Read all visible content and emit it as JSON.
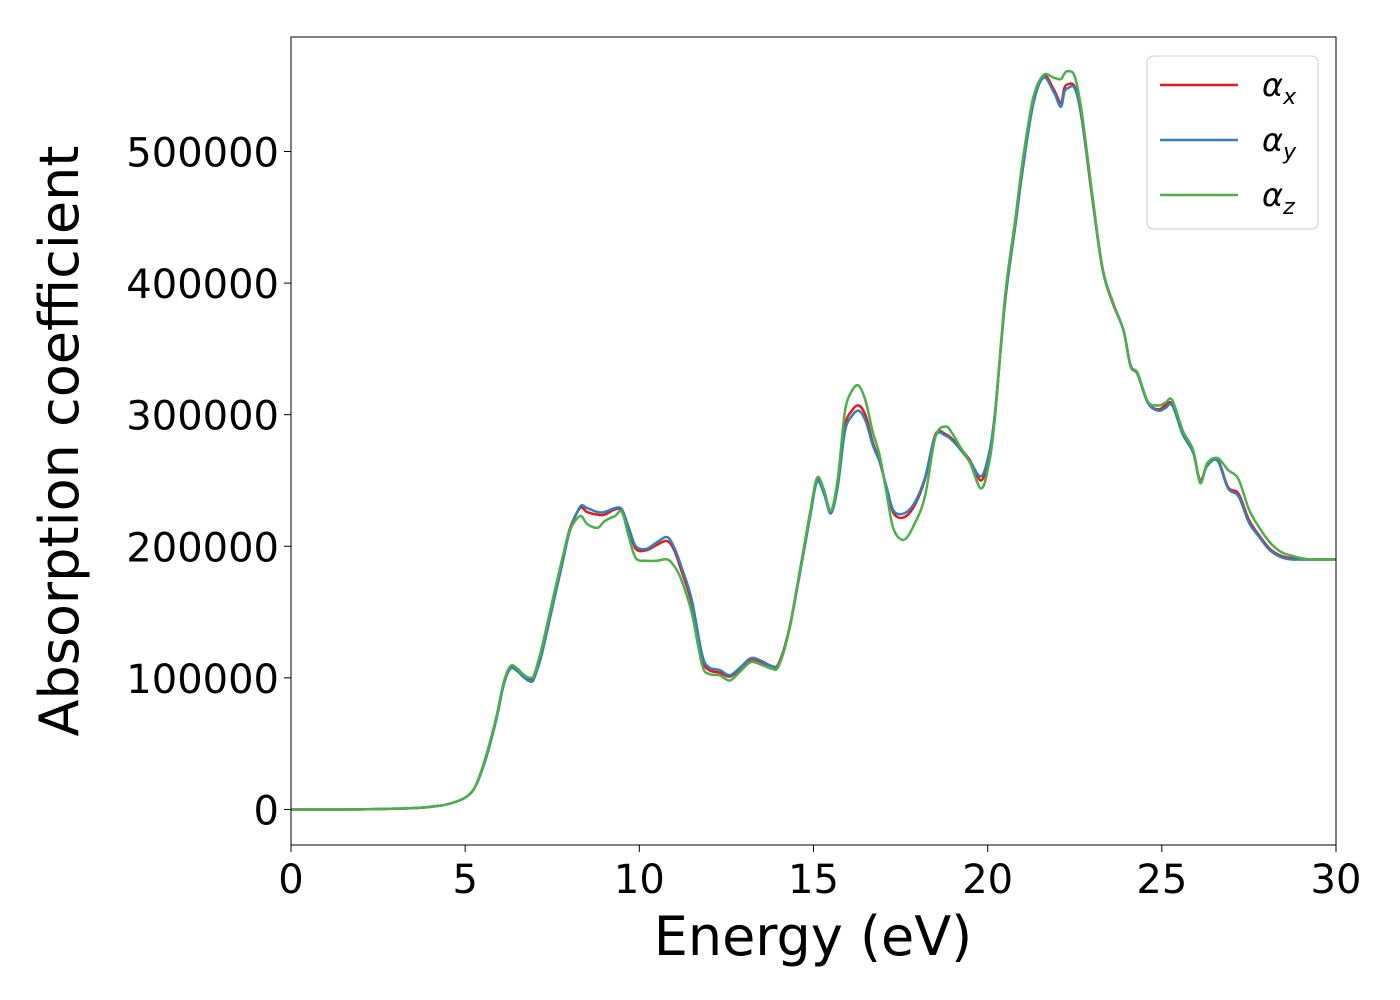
{
  "chart_data": {
    "type": "line",
    "title": "",
    "xlabel": "Energy (eV)",
    "ylabel": "Absorption coefficient",
    "xlim": [
      0,
      30
    ],
    "ylim": [
      -27000,
      587000
    ],
    "xticks": [
      0,
      5,
      10,
      15,
      20,
      25,
      30
    ],
    "yticks": [
      0,
      100000,
      200000,
      300000,
      400000,
      500000
    ],
    "grid": false,
    "legend_position": "top-right",
    "series": [
      {
        "name": "αx",
        "label_base": "α",
        "label_sub": "x",
        "color": "#e41a1c",
        "x": [
          0,
          1,
          2,
          3,
          3.5,
          4,
          4.5,
          5,
          5.3,
          5.6,
          5.9,
          6.1,
          6.3,
          6.5,
          6.7,
          6.9,
          7.0,
          7.2,
          7.5,
          7.8,
          8.0,
          8.3,
          8.5,
          8.8,
          9.0,
          9.3,
          9.5,
          9.7,
          9.9,
          10.2,
          10.5,
          10.8,
          11.0,
          11.2,
          11.5,
          11.8,
          12.0,
          12.3,
          12.6,
          12.9,
          13.2,
          13.5,
          13.8,
          14.0,
          14.3,
          14.6,
          14.9,
          15.1,
          15.3,
          15.5,
          15.7,
          15.9,
          16.1,
          16.3,
          16.5,
          16.7,
          16.9,
          17.1,
          17.3,
          17.6,
          17.9,
          18.2,
          18.5,
          18.8,
          19.0,
          19.2,
          19.5,
          19.8,
          20.0,
          20.2,
          20.5,
          20.8,
          21.0,
          21.3,
          21.6,
          21.9,
          22.1,
          22.2,
          22.3,
          22.5,
          22.7,
          23.0,
          23.3,
          23.6,
          23.9,
          24.1,
          24.3,
          24.6,
          24.9,
          25.1,
          25.3,
          25.6,
          25.9,
          26.1,
          26.3,
          26.6,
          26.9,
          27.2,
          27.5,
          27.8,
          28.1,
          28.4,
          28.7,
          29.0,
          29.3,
          29.6,
          29.9,
          30
        ],
        "y": [
          0,
          0,
          100,
          600,
          1000,
          2000,
          4000,
          9000,
          18000,
          40000,
          70000,
          95000,
          108000,
          106000,
          101000,
          99000,
          102000,
          120000,
          155000,
          190000,
          213000,
          229000,
          226000,
          224000,
          224000,
          228000,
          227000,
          213000,
          198000,
          197000,
          201000,
          204000,
          197000,
          182000,
          157000,
          115000,
          106000,
          104000,
          101000,
          107000,
          114000,
          112000,
          109000,
          111000,
          137000,
          180000,
          225000,
          250000,
          241000,
          226000,
          248000,
          291000,
          303000,
          307000,
          299000,
          279000,
          265000,
          243000,
          225000,
          222000,
          231000,
          251000,
          285000,
          285000,
          281000,
          275000,
          265000,
          250000,
          264000,
          298000,
          386000,
          445000,
          486000,
          536000,
          558000,
          547000,
          537000,
          548000,
          551000,
          549000,
          525000,
          465000,
          410000,
          384000,
          364000,
          337000,
          331000,
          309000,
          304000,
          307000,
          308000,
          286000,
          272000,
          250000,
          262000,
          266000,
          245000,
          240000,
          220000,
          208000,
          198000,
          193000,
          191000,
          190000,
          190000,
          190000,
          190000,
          190000
        ],
        "y_note": "approximate"
      },
      {
        "name": "αy",
        "label_base": "α",
        "label_sub": "y",
        "color": "#377eb8",
        "x": [
          0,
          1,
          2,
          3,
          3.5,
          4,
          4.5,
          5,
          5.3,
          5.6,
          5.9,
          6.1,
          6.3,
          6.5,
          6.7,
          6.9,
          7.0,
          7.2,
          7.5,
          7.8,
          8.0,
          8.3,
          8.5,
          8.8,
          9.0,
          9.3,
          9.5,
          9.7,
          9.9,
          10.2,
          10.5,
          10.8,
          11.0,
          11.2,
          11.5,
          11.8,
          12.0,
          12.3,
          12.6,
          12.9,
          13.2,
          13.5,
          13.8,
          14.0,
          14.3,
          14.6,
          14.9,
          15.1,
          15.3,
          15.5,
          15.7,
          15.9,
          16.1,
          16.3,
          16.5,
          16.7,
          16.9,
          17.1,
          17.3,
          17.6,
          17.9,
          18.2,
          18.5,
          18.8,
          19.0,
          19.2,
          19.5,
          19.8,
          20.0,
          20.2,
          20.5,
          20.8,
          21.0,
          21.3,
          21.6,
          21.9,
          22.1,
          22.2,
          22.3,
          22.5,
          22.7,
          23.0,
          23.3,
          23.6,
          23.9,
          24.1,
          24.3,
          24.6,
          24.9,
          25.1,
          25.3,
          25.6,
          25.9,
          26.1,
          26.3,
          26.6,
          26.9,
          27.2,
          27.5,
          27.8,
          28.1,
          28.4,
          28.7,
          29.0,
          29.3,
          29.6,
          29.9,
          30
        ],
        "y": [
          0,
          0,
          100,
          600,
          1000,
          2000,
          4000,
          9000,
          18000,
          39000,
          69000,
          94000,
          107000,
          105000,
          100000,
          97000,
          101000,
          118000,
          153000,
          188000,
          211000,
          230000,
          229000,
          226000,
          226000,
          229000,
          228000,
          214000,
          200000,
          198000,
          203000,
          207000,
          199000,
          185000,
          160000,
          118000,
          108000,
          106000,
          102000,
          108000,
          115000,
          113000,
          109000,
          110000,
          136000,
          178000,
          222000,
          249000,
          240000,
          225000,
          246000,
          287000,
          299000,
          303000,
          295000,
          277000,
          264000,
          245000,
          227000,
          225000,
          233000,
          252000,
          284000,
          284000,
          280000,
          274000,
          264000,
          253000,
          266000,
          299000,
          386000,
          445000,
          485000,
          535000,
          556000,
          545000,
          534000,
          545000,
          548000,
          548000,
          526000,
          466000,
          411000,
          385000,
          364000,
          338000,
          331000,
          309000,
          303000,
          305000,
          307000,
          285000,
          271000,
          249000,
          261000,
          265000,
          244000,
          238000,
          218000,
          207000,
          197000,
          192000,
          190000,
          190000,
          190000,
          190000,
          190000,
          190000
        ],
        "y_note": "approximate"
      },
      {
        "name": "αz",
        "label_base": "α",
        "label_sub": "z",
        "color": "#4daf4a",
        "x": [
          0,
          1,
          2,
          3,
          3.5,
          4,
          4.5,
          5,
          5.3,
          5.6,
          5.9,
          6.1,
          6.3,
          6.5,
          6.7,
          6.9,
          7.0,
          7.2,
          7.5,
          7.8,
          8.0,
          8.3,
          8.5,
          8.8,
          9.0,
          9.3,
          9.5,
          9.7,
          9.9,
          10.2,
          10.5,
          10.8,
          11.0,
          11.2,
          11.5,
          11.8,
          12.0,
          12.3,
          12.6,
          12.9,
          13.2,
          13.5,
          13.8,
          14.0,
          14.3,
          14.6,
          14.9,
          15.1,
          15.3,
          15.5,
          15.7,
          15.9,
          16.1,
          16.3,
          16.5,
          16.7,
          16.9,
          17.1,
          17.3,
          17.6,
          17.9,
          18.2,
          18.5,
          18.8,
          19.0,
          19.2,
          19.5,
          19.8,
          20.0,
          20.2,
          20.5,
          20.8,
          21.0,
          21.3,
          21.6,
          21.9,
          22.1,
          22.2,
          22.3,
          22.5,
          22.7,
          23.0,
          23.3,
          23.6,
          23.9,
          24.1,
          24.3,
          24.6,
          24.9,
          25.1,
          25.3,
          25.6,
          25.9,
          26.1,
          26.3,
          26.6,
          26.9,
          27.2,
          27.5,
          27.8,
          28.1,
          28.4,
          28.7,
          29.0,
          29.3,
          29.6,
          29.9,
          30
        ],
        "y": [
          0,
          0,
          100,
          600,
          1000,
          2000,
          4000,
          9000,
          18000,
          41000,
          71000,
          96000,
          109000,
          107000,
          102000,
          100000,
          104000,
          123000,
          158000,
          192000,
          212000,
          223000,
          217000,
          214000,
          219000,
          223000,
          226000,
          207000,
          191000,
          189000,
          189000,
          190000,
          185000,
          175000,
          150000,
          110000,
          103000,
          102000,
          98000,
          105000,
          112000,
          110000,
          107000,
          109000,
          136000,
          180000,
          225000,
          252000,
          243000,
          227000,
          252000,
          302000,
          318000,
          322000,
          310000,
          287000,
          269000,
          240000,
          213000,
          205000,
          217000,
          238000,
          283000,
          291000,
          285000,
          276000,
          263000,
          244000,
          258000,
          295000,
          390000,
          450000,
          492000,
          540000,
          558000,
          556000,
          555000,
          559000,
          561000,
          557000,
          530000,
          468000,
          411000,
          385000,
          364000,
          337000,
          332000,
          310000,
          307000,
          309000,
          311000,
          288000,
          273000,
          248000,
          263000,
          267000,
          258000,
          251000,
          228000,
          214000,
          203000,
          196000,
          193000,
          191000,
          190000,
          190000,
          190000,
          190000
        ],
        "y_note": "approximate"
      }
    ]
  }
}
